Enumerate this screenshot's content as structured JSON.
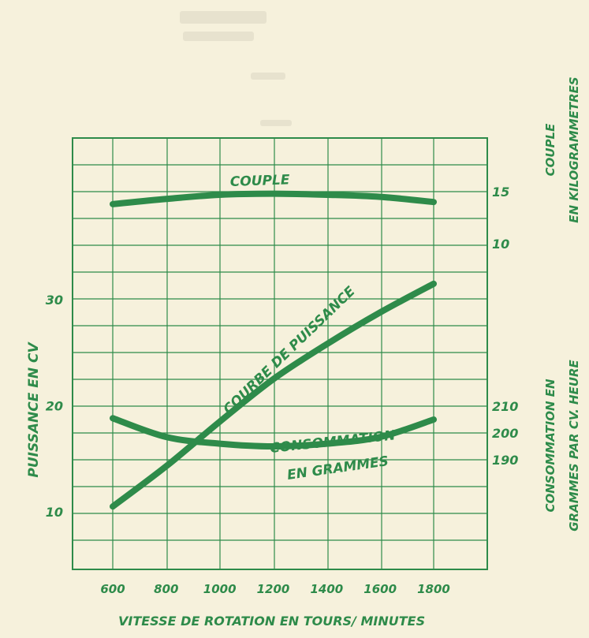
{
  "colors": {
    "ink": "#2e8b4a",
    "paper": "#f6f1dc",
    "ghost_text": "#c9c2ab"
  },
  "chart_data": {
    "type": "line",
    "title": "",
    "x_axis": {
      "label": "VITESSE DE ROTATION EN TOURS/ MINUTES",
      "range": [
        500,
        1900
      ],
      "ticks": [
        600,
        800,
        1000,
        1200,
        1400,
        1600,
        1800
      ],
      "tick_labels": [
        "600",
        "800",
        "1000",
        "1200",
        "1400",
        "1600",
        "1800"
      ]
    },
    "left_axis": {
      "label": "PUISSANCE EN CV",
      "range": [
        4,
        43
      ],
      "ticks": [
        10,
        20,
        30
      ],
      "tick_labels": [
        "10",
        "20",
        "30"
      ]
    },
    "right_axis_couple": {
      "label_line1": "COUPLE",
      "label_line2": "EN KILOGRAMMETRES",
      "ticks": [
        10,
        15
      ],
      "tick_labels": [
        "10",
        "15"
      ]
    },
    "right_axis_consumption": {
      "label_line1": "CONSOMMATION EN",
      "label_line2": "GRAMMES PAR CV. HEURE",
      "ticks": [
        190,
        200,
        210
      ],
      "tick_labels": [
        "190",
        "200",
        "210"
      ]
    },
    "grid": true,
    "series": [
      {
        "name": "COUPLE",
        "axis": "couple",
        "x": [
          600,
          800,
          1000,
          1200,
          1400,
          1600,
          1800
        ],
        "values": [
          13.8,
          14.3,
          14.7,
          14.8,
          14.7,
          14.5,
          14.0
        ]
      },
      {
        "name": "COURBE DE PUISSANCE",
        "axis": "puissance",
        "x": [
          600,
          800,
          1000,
          1200,
          1400,
          1600,
          1800
        ],
        "values": [
          10.5,
          14.3,
          18.5,
          22.5,
          25.8,
          28.8,
          31.5
        ]
      },
      {
        "name": "CONSOMMATION EN GRAMMES",
        "axis": "consumption",
        "x": [
          600,
          800,
          1000,
          1200,
          1400,
          1600,
          1800
        ],
        "values": [
          205.5,
          198.5,
          196,
          195,
          196,
          198.5,
          205
        ]
      }
    ],
    "series_labels": {
      "couple": "COUPLE",
      "power": "COURBE DE PUISSANCE",
      "consumption_line1": "CONSOMMATION",
      "consumption_line2": "EN GRAMMES"
    }
  }
}
